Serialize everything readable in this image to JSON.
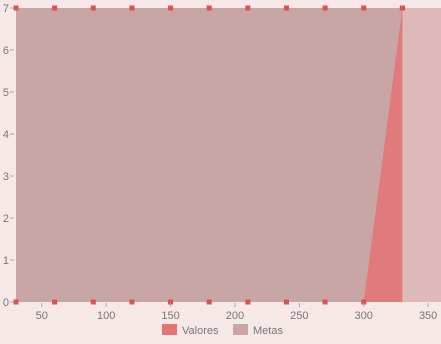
{
  "chart_data": {
    "type": "area",
    "x": [
      30,
      60,
      90,
      120,
      150,
      180,
      210,
      240,
      270,
      300,
      330
    ],
    "series": [
      {
        "name": "Valores",
        "color": "#e57373",
        "values": [
          0,
          0,
          0,
          0,
          0,
          0,
          0,
          0,
          0,
          0,
          7
        ]
      },
      {
        "name": "Metas",
        "color": "#c9a6a6",
        "values": [
          7,
          7,
          7,
          7,
          7,
          7,
          7,
          7,
          7,
          7,
          7
        ]
      }
    ],
    "xticks": [
      "50",
      "100",
      "150",
      "200",
      "250",
      "300",
      "350"
    ],
    "xtick_values": [
      50,
      100,
      150,
      200,
      250,
      300,
      350
    ],
    "yticks": [
      "0",
      "1",
      "2",
      "3",
      "4",
      "5",
      "6",
      "7"
    ],
    "ytick_values": [
      0,
      1,
      2,
      3,
      4,
      5,
      6,
      7
    ],
    "xlim": [
      30,
      360
    ],
    "ylim": [
      0,
      7
    ],
    "title": "",
    "xlabel": "",
    "ylabel": "",
    "grid": false,
    "legend_position": "bottom-center",
    "plot_background": "#ddb9b9",
    "page_background": "#f6e8e7",
    "marker_color": "#e05050"
  }
}
